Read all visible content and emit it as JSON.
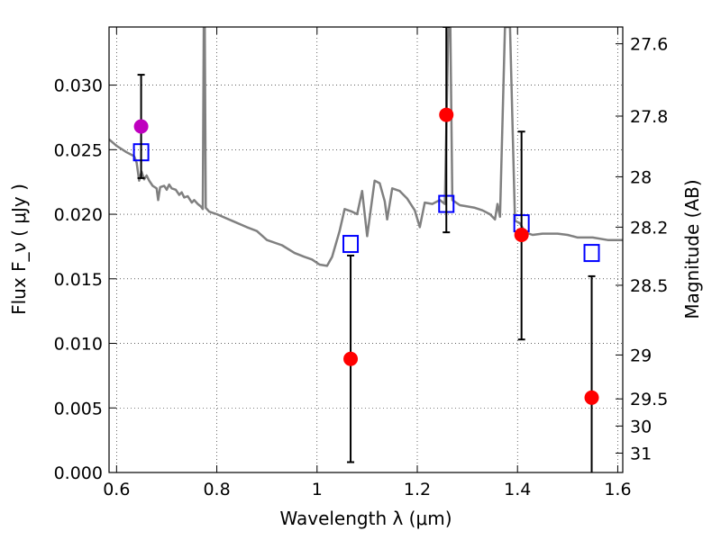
{
  "chart_data": {
    "type": "scatter",
    "xlabel": "Wavelength  λ (μm)",
    "ylabel": "Flux  F_ν  ( μJy )",
    "ylabel_right": "Magnitude (AB)",
    "xlim": [
      0.585,
      1.61
    ],
    "ylim": [
      0.0,
      0.0345
    ],
    "grid": true,
    "x_ticks": [
      0.6,
      0.8,
      1.0,
      1.2,
      1.4,
      1.6
    ],
    "x_tick_labels": [
      "0.6",
      "0.8",
      "1",
      "1.2",
      "1.4",
      "1.6"
    ],
    "y_ticks": [
      0.0,
      0.005,
      0.01,
      0.015,
      0.02,
      0.025,
      0.03
    ],
    "y_tick_labels": [
      "0.000",
      "0.005",
      "0.010",
      "0.015",
      "0.020",
      "0.025",
      "0.030"
    ],
    "right_ticks": [
      {
        "label": "27.6",
        "flux": 0.0332
      },
      {
        "label": "27.8",
        "flux": 0.0276
      },
      {
        "label": "28",
        "flux": 0.0229
      },
      {
        "label": "28.2",
        "flux": 0.019
      },
      {
        "label": "28.5",
        "flux": 0.0145
      },
      {
        "label": "29",
        "flux": 0.0091
      },
      {
        "label": "29.5",
        "flux": 0.0057
      },
      {
        "label": "30",
        "flux": 0.0036
      },
      {
        "label": "31",
        "flux": 0.0015
      }
    ],
    "series": [
      {
        "kind": "line",
        "color": "#808080",
        "points": [
          [
            0.585,
            0.0258
          ],
          [
            0.6,
            0.0253
          ],
          [
            0.62,
            0.0248
          ],
          [
            0.635,
            0.0245
          ],
          [
            0.64,
            0.024
          ],
          [
            0.645,
            0.0226
          ],
          [
            0.65,
            0.0233
          ],
          [
            0.655,
            0.0227
          ],
          [
            0.66,
            0.023
          ],
          [
            0.665,
            0.0226
          ],
          [
            0.672,
            0.0222
          ],
          [
            0.68,
            0.022
          ],
          [
            0.683,
            0.0211
          ],
          [
            0.687,
            0.0221
          ],
          [
            0.695,
            0.0222
          ],
          [
            0.7,
            0.0219
          ],
          [
            0.705,
            0.0223
          ],
          [
            0.71,
            0.022
          ],
          [
            0.718,
            0.0219
          ],
          [
            0.725,
            0.0215
          ],
          [
            0.73,
            0.0217
          ],
          [
            0.735,
            0.0213
          ],
          [
            0.742,
            0.0214
          ],
          [
            0.75,
            0.0209
          ],
          [
            0.755,
            0.0211
          ],
          [
            0.762,
            0.0208
          ],
          [
            0.768,
            0.0206
          ],
          [
            0.772,
            0.0204
          ],
          [
            0.774,
            0.0345
          ],
          [
            0.776,
            0.0345
          ],
          [
            0.778,
            0.0205
          ],
          [
            0.785,
            0.0202
          ],
          [
            0.8,
            0.02
          ],
          [
            0.83,
            0.0195
          ],
          [
            0.86,
            0.019
          ],
          [
            0.88,
            0.0187
          ],
          [
            0.9,
            0.018
          ],
          [
            0.93,
            0.0176
          ],
          [
            0.955,
            0.017
          ],
          [
            0.975,
            0.0167
          ],
          [
            0.99,
            0.0165
          ],
          [
            1.005,
            0.0161
          ],
          [
            1.02,
            0.016
          ],
          [
            1.03,
            0.0167
          ],
          [
            1.045,
            0.0187
          ],
          [
            1.055,
            0.0204
          ],
          [
            1.07,
            0.0202
          ],
          [
            1.08,
            0.02
          ],
          [
            1.09,
            0.0218
          ],
          [
            1.1,
            0.0183
          ],
          [
            1.115,
            0.0226
          ],
          [
            1.125,
            0.0224
          ],
          [
            1.135,
            0.021
          ],
          [
            1.14,
            0.0196
          ],
          [
            1.15,
            0.022
          ],
          [
            1.165,
            0.0218
          ],
          [
            1.18,
            0.0212
          ],
          [
            1.195,
            0.0203
          ],
          [
            1.205,
            0.019
          ],
          [
            1.215,
            0.0209
          ],
          [
            1.23,
            0.0208
          ],
          [
            1.245,
            0.0211
          ],
          [
            1.255,
            0.0208
          ],
          [
            1.262,
            0.0345
          ],
          [
            1.266,
            0.0345
          ],
          [
            1.27,
            0.0211
          ],
          [
            1.285,
            0.0207
          ],
          [
            1.3,
            0.0206
          ],
          [
            1.315,
            0.0205
          ],
          [
            1.33,
            0.0203
          ],
          [
            1.345,
            0.02
          ],
          [
            1.355,
            0.0196
          ],
          [
            1.36,
            0.0208
          ],
          [
            1.365,
            0.0198
          ],
          [
            1.375,
            0.0345
          ],
          [
            1.385,
            0.0345
          ],
          [
            1.395,
            0.0195
          ],
          [
            1.405,
            0.0193
          ],
          [
            1.415,
            0.0186
          ],
          [
            1.43,
            0.0184
          ],
          [
            1.45,
            0.0185
          ],
          [
            1.48,
            0.0185
          ],
          [
            1.5,
            0.0184
          ],
          [
            1.52,
            0.0182
          ],
          [
            1.55,
            0.0182
          ],
          [
            1.58,
            0.018
          ],
          [
            1.61,
            0.018
          ]
        ]
      },
      {
        "kind": "open-squares",
        "color": "#0000ff",
        "points": [
          [
            0.649,
            0.0248
          ],
          [
            1.067,
            0.0177
          ],
          [
            1.258,
            0.0208
          ],
          [
            1.408,
            0.0193
          ],
          [
            1.548,
            0.017
          ]
        ]
      },
      {
        "kind": "errorbars",
        "color": "#000000",
        "points": [
          {
            "x": 0.649,
            "y": 0.0268,
            "lo": 0.0228,
            "hi": 0.0308
          },
          {
            "x": 1.067,
            "y": 0.0088,
            "lo": 0.0008,
            "hi": 0.0168
          },
          {
            "x": 1.258,
            "y": 0.0277,
            "lo": 0.0186,
            "hi": 0.0345
          },
          {
            "x": 1.408,
            "y": 0.0184,
            "lo": 0.0103,
            "hi": 0.0264
          },
          {
            "x": 1.548,
            "y": 0.0058,
            "lo": -0.001,
            "hi": 0.0152
          }
        ]
      },
      {
        "kind": "filled-circles",
        "points": [
          {
            "x": 0.649,
            "y": 0.0268,
            "color": "#bf00bf"
          },
          {
            "x": 1.067,
            "y": 0.0088,
            "color": "#ff0000"
          },
          {
            "x": 1.258,
            "y": 0.0277,
            "color": "#ff0000"
          },
          {
            "x": 1.408,
            "y": 0.0184,
            "color": "#ff0000"
          },
          {
            "x": 1.548,
            "y": 0.0058,
            "color": "#ff0000"
          }
        ]
      }
    ]
  }
}
